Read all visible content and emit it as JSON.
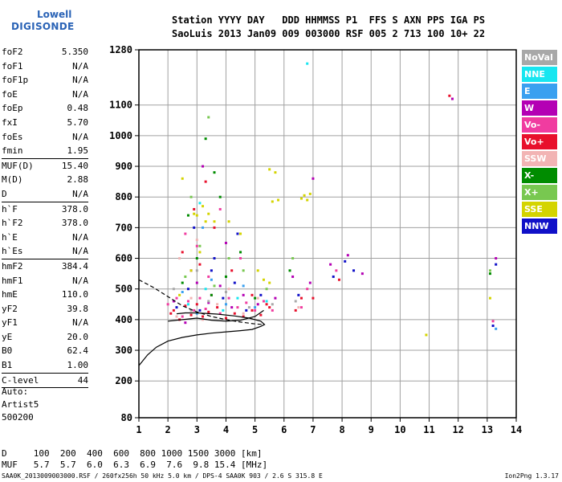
{
  "logo": {
    "line1": "Lowell",
    "line2": "DIGISONDE"
  },
  "header": {
    "line1": "Station YYYY DAY   DDD HHMMSS P1  FFS S AXN PPS IGA PS",
    "line2": "SaoLuis 2013 Jan09 009 003000 RSF 005 2 713 100 10+ 22"
  },
  "params": [
    {
      "name": "foF2",
      "value": "5.350"
    },
    {
      "name": "foF1",
      "value": "N/A"
    },
    {
      "name": "foF1p",
      "value": "N/A"
    },
    {
      "name": "foE",
      "value": "N/A"
    },
    {
      "name": "foEp",
      "value": "0.48"
    },
    {
      "name": "fxI",
      "value": "5.70"
    },
    {
      "name": "foEs",
      "value": "N/A"
    },
    {
      "name": "fmin",
      "value": "1.95"
    },
    {
      "name": "MUF(D)",
      "value": "15.40"
    },
    {
      "name": "M(D)",
      "value": "2.88"
    },
    {
      "name": "D",
      "value": "N/A"
    },
    {
      "name": "h`F",
      "value": "378.0"
    },
    {
      "name": "h`F2",
      "value": "378.0"
    },
    {
      "name": "h`E",
      "value": "N/A"
    },
    {
      "name": "h`Es",
      "value": "N/A"
    },
    {
      "name": "hmF2",
      "value": "384.4"
    },
    {
      "name": "hmF1",
      "value": "N/A"
    },
    {
      "name": "hmE",
      "value": "110.0"
    },
    {
      "name": "yF2",
      "value": "39.8"
    },
    {
      "name": "yF1",
      "value": "N/A"
    },
    {
      "name": "yE",
      "value": "20.0"
    },
    {
      "name": "B0",
      "value": "62.4"
    },
    {
      "name": "B1",
      "value": "1.00"
    },
    {
      "name": "C-level",
      "value": "44"
    }
  ],
  "auto": {
    "line1": "Auto:",
    "line2": "Artist5",
    "line3": "500200"
  },
  "legend": [
    {
      "label": "NoVal",
      "color": "#a8a8a8"
    },
    {
      "label": "NNE",
      "color": "#18e6f0"
    },
    {
      "label": "E",
      "color": "#3aa0f0"
    },
    {
      "label": "W",
      "color": "#b400b4"
    },
    {
      "label": "Vo-",
      "color": "#f03ca0"
    },
    {
      "label": "Vo+",
      "color": "#e8102c"
    },
    {
      "label": "SSW",
      "color": "#f2b4b4"
    },
    {
      "label": "X-",
      "color": "#008c00"
    },
    {
      "label": "X+",
      "color": "#78c850"
    },
    {
      "label": "SSE",
      "color": "#d4d400"
    },
    {
      "label": "NNW",
      "color": "#1010c8"
    }
  ],
  "bottom": {
    "row1": "D     100  200  400  600  800 1000 1500 3000 [km]",
    "row2": "MUF   5.7  5.7  6.0  6.3  6.9  7.6  9.8 15.4 [MHz]"
  },
  "footer": {
    "left": "SAA0K_2013009003000.RSF / 260fx256h 50 kHz 5.0 km / DPS-4 SAA0K 903 / 2.6 S 315.8 E",
    "right": "Ion2Png 1.3.17"
  },
  "chart_data": {
    "type": "scatter",
    "title": "",
    "xlabel": "",
    "ylabel": "",
    "xlim": [
      1,
      14
    ],
    "ylim": [
      80,
      1280
    ],
    "x_ticks": [
      1,
      2,
      3,
      4,
      5,
      6,
      7,
      8,
      9,
      10,
      11,
      12,
      13,
      14
    ],
    "y_ticks": [
      80,
      200,
      300,
      400,
      500,
      600,
      700,
      800,
      900,
      1000,
      1100,
      1280
    ],
    "grid": true,
    "series": [
      {
        "label": "Vo+",
        "color": "#e8102c",
        "points": [
          [
            2.1,
            420
          ],
          [
            2.2,
            430
          ],
          [
            2.4,
            400
          ],
          [
            2.6,
            445
          ],
          [
            2.8,
            415
          ],
          [
            3.0,
            450
          ],
          [
            3.2,
            410
          ],
          [
            3.4,
            425
          ],
          [
            3.7,
            440
          ],
          [
            4.0,
            405
          ],
          [
            4.3,
            420
          ],
          [
            4.6,
            410
          ],
          [
            4.9,
            430
          ],
          [
            5.2,
            415
          ],
          [
            5.5,
            440
          ],
          [
            6.4,
            430
          ],
          [
            7.9,
            530
          ],
          [
            2.5,
            620
          ],
          [
            3.1,
            580
          ],
          [
            3.6,
            700
          ],
          [
            4.2,
            560
          ],
          [
            4.9,
            480
          ],
          [
            5.4,
            450
          ],
          [
            6.6,
            470
          ],
          [
            3.3,
            850
          ],
          [
            2.9,
            760
          ],
          [
            7.0,
            470
          ],
          [
            11.7,
            1130
          ]
        ]
      },
      {
        "label": "Vo-",
        "color": "#f03ca0",
        "points": [
          [
            2.0,
            450
          ],
          [
            2.3,
            470
          ],
          [
            2.5,
            410
          ],
          [
            2.7,
            460
          ],
          [
            2.9,
            430
          ],
          [
            3.1,
            470
          ],
          [
            3.3,
            435
          ],
          [
            3.5,
            480
          ],
          [
            3.8,
            420
          ],
          [
            4.1,
            470
          ],
          [
            4.4,
            440
          ],
          [
            4.7,
            455
          ],
          [
            5.0,
            430
          ],
          [
            5.3,
            460
          ],
          [
            5.6,
            430
          ],
          [
            6.6,
            440
          ],
          [
            7.8,
            560
          ],
          [
            2.6,
            680
          ],
          [
            3.0,
            640
          ],
          [
            3.4,
            540
          ],
          [
            4.5,
            600
          ],
          [
            3.8,
            760
          ],
          [
            6.8,
            500
          ],
          [
            13.2,
            395
          ]
        ]
      },
      {
        "label": "W",
        "color": "#b400b4",
        "points": [
          [
            2.2,
            460
          ],
          [
            2.6,
            390
          ],
          [
            3.0,
            520
          ],
          [
            3.4,
            455
          ],
          [
            3.8,
            510
          ],
          [
            4.2,
            440
          ],
          [
            4.6,
            480
          ],
          [
            5.1,
            450
          ],
          [
            5.7,
            470
          ],
          [
            6.3,
            540
          ],
          [
            6.9,
            520
          ],
          [
            7.6,
            580
          ],
          [
            8.2,
            610
          ],
          [
            3.2,
            900
          ],
          [
            4.0,
            650
          ],
          [
            2.8,
            560
          ],
          [
            7.0,
            860
          ],
          [
            13.3,
            600
          ],
          [
            8.7,
            550
          ],
          [
            11.8,
            1120
          ]
        ]
      },
      {
        "label": "NNW",
        "color": "#1010c8",
        "points": [
          [
            2.3,
            440
          ],
          [
            2.7,
            500
          ],
          [
            3.1,
            430
          ],
          [
            3.5,
            560
          ],
          [
            3.9,
            470
          ],
          [
            4.3,
            520
          ],
          [
            4.7,
            430
          ],
          [
            5.2,
            480
          ],
          [
            6.5,
            480
          ],
          [
            7.7,
            540
          ],
          [
            8.1,
            590
          ],
          [
            2.9,
            700
          ],
          [
            3.6,
            600
          ],
          [
            4.4,
            680
          ],
          [
            13.3,
            580
          ],
          [
            13.2,
            380
          ],
          [
            8.4,
            560
          ]
        ]
      },
      {
        "label": "SSE",
        "color": "#d4d400",
        "points": [
          [
            2.4,
            480
          ],
          [
            2.8,
            560
          ],
          [
            3.0,
            740
          ],
          [
            3.2,
            770
          ],
          [
            3.4,
            745
          ],
          [
            3.6,
            720
          ],
          [
            2.9,
            745
          ],
          [
            3.3,
            720
          ],
          [
            4.1,
            720
          ],
          [
            4.5,
            680
          ],
          [
            5.1,
            560
          ],
          [
            5.3,
            530
          ],
          [
            5.5,
            520
          ],
          [
            5.7,
            880
          ],
          [
            5.5,
            890
          ],
          [
            5.6,
            785
          ],
          [
            5.8,
            790
          ],
          [
            6.6,
            795
          ],
          [
            6.7,
            805
          ],
          [
            6.8,
            790
          ],
          [
            6.9,
            810
          ],
          [
            2.5,
            860
          ],
          [
            3.1,
            620
          ],
          [
            13.1,
            470
          ],
          [
            10.9,
            350
          ]
        ]
      },
      {
        "label": "X-",
        "color": "#008c00",
        "points": [
          [
            2.5,
            520
          ],
          [
            3.0,
            600
          ],
          [
            3.5,
            480
          ],
          [
            4.0,
            540
          ],
          [
            4.5,
            620
          ],
          [
            2.7,
            740
          ],
          [
            3.8,
            800
          ],
          [
            5.0,
            470
          ],
          [
            6.2,
            560
          ],
          [
            3.3,
            990
          ],
          [
            13.1,
            550
          ],
          [
            3.6,
            880
          ]
        ]
      },
      {
        "label": "X+",
        "color": "#78c850",
        "points": [
          [
            2.6,
            540
          ],
          [
            3.1,
            640
          ],
          [
            3.6,
            510
          ],
          [
            4.1,
            600
          ],
          [
            4.6,
            560
          ],
          [
            2.8,
            800
          ],
          [
            3.4,
            1060
          ],
          [
            5.4,
            500
          ],
          [
            6.3,
            600
          ],
          [
            13.1,
            560
          ]
        ]
      },
      {
        "label": "SSW",
        "color": "#f2b4b4",
        "points": [
          [
            2.3,
            410
          ],
          [
            2.8,
            470
          ],
          [
            3.2,
            400
          ],
          [
            3.7,
            450
          ],
          [
            4.1,
            500
          ],
          [
            4.6,
            420
          ],
          [
            5.1,
            470
          ],
          [
            6.5,
            440
          ],
          [
            3.0,
            660
          ],
          [
            2.4,
            600
          ]
        ]
      },
      {
        "label": "E",
        "color": "#3aa0f0",
        "points": [
          [
            2.5,
            490
          ],
          [
            3.0,
            420
          ],
          [
            3.5,
            530
          ],
          [
            4.0,
            450
          ],
          [
            4.6,
            510
          ],
          [
            5.0,
            440
          ],
          [
            3.2,
            700
          ],
          [
            13.3,
            370
          ]
        ]
      },
      {
        "label": "NNE",
        "color": "#18e6f0",
        "points": [
          [
            2.7,
            450
          ],
          [
            3.3,
            500
          ],
          [
            3.9,
            430
          ],
          [
            4.4,
            470
          ],
          [
            5.4,
            460
          ],
          [
            6.8,
            1235
          ],
          [
            3.1,
            780
          ]
        ]
      },
      {
        "label": "NoVal",
        "color": "#a8a8a8",
        "points": [
          [
            2.2,
            500
          ],
          [
            2.8,
            430
          ],
          [
            3.4,
            460
          ],
          [
            4.0,
            490
          ],
          [
            4.8,
            440
          ],
          [
            5.6,
            450
          ],
          [
            6.4,
            460
          ],
          [
            3.0,
            560
          ]
        ]
      }
    ],
    "curves": [
      {
        "name": "profile-solid",
        "style": "solid",
        "points": [
          [
            1.0,
            250
          ],
          [
            1.3,
            285
          ],
          [
            1.6,
            310
          ],
          [
            2.0,
            330
          ],
          [
            2.5,
            342
          ],
          [
            3.0,
            350
          ],
          [
            3.5,
            356
          ],
          [
            4.0,
            360
          ],
          [
            4.5,
            364
          ],
          [
            4.9,
            368
          ],
          [
            5.2,
            378
          ],
          [
            5.33,
            384
          ],
          [
            5.2,
            395
          ],
          [
            4.8,
            405
          ],
          [
            4.3,
            412
          ],
          [
            3.7,
            418
          ],
          [
            3.0,
            422
          ],
          [
            2.6,
            422
          ],
          [
            2.3,
            419
          ]
        ]
      },
      {
        "name": "profile-dashed",
        "style": "dashed",
        "points": [
          [
            1.0,
            530
          ],
          [
            1.5,
            505
          ],
          [
            2.0,
            475
          ],
          [
            2.5,
            445
          ],
          [
            3.0,
            425
          ],
          [
            3.5,
            410
          ],
          [
            4.0,
            400
          ],
          [
            4.5,
            392
          ],
          [
            5.0,
            386
          ],
          [
            5.3,
            384
          ]
        ]
      },
      {
        "name": "trace-overlay",
        "style": "solid",
        "points": [
          [
            2.0,
            395
          ],
          [
            2.5,
            400
          ],
          [
            3.0,
            405
          ],
          [
            3.5,
            398
          ],
          [
            4.0,
            395
          ],
          [
            4.5,
            398
          ],
          [
            5.0,
            410
          ],
          [
            5.3,
            430
          ]
        ]
      }
    ]
  }
}
